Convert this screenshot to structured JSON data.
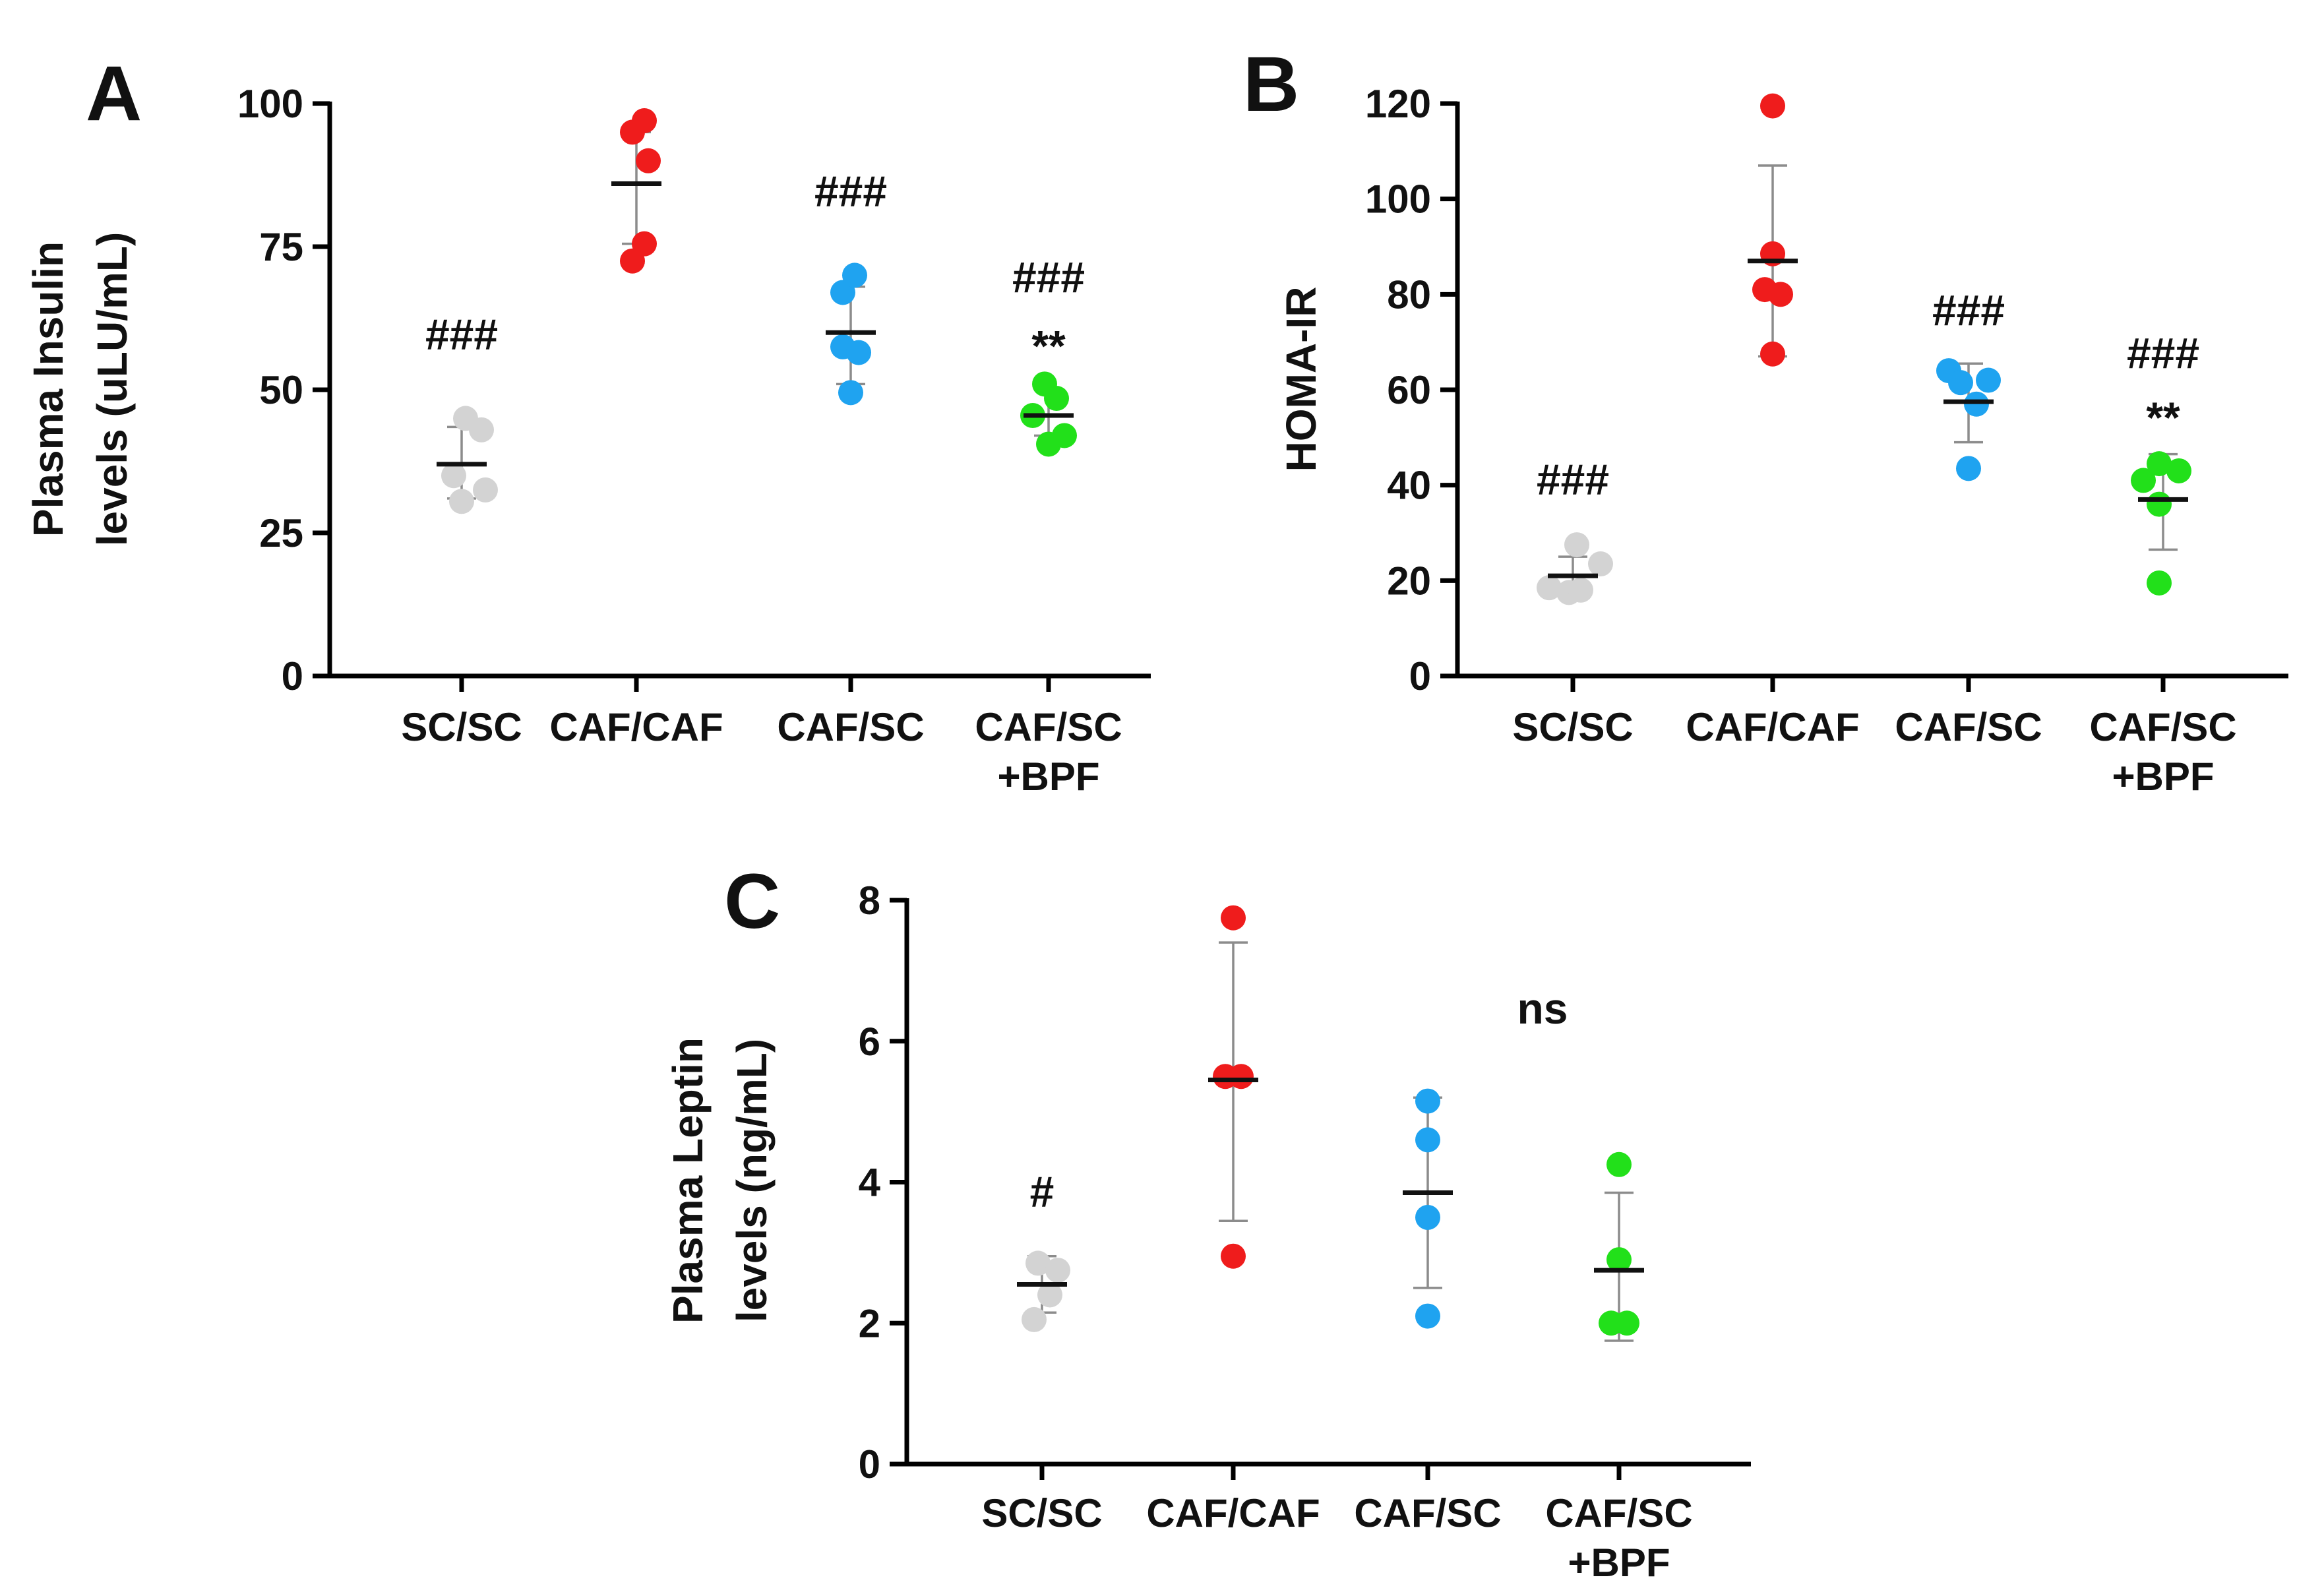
{
  "chart_data": [
    {
      "panel": "A",
      "type": "scatter",
      "ylabel_lines": [
        "Plasma Insulin",
        "levels (uLU/mL)"
      ],
      "ylim": [
        0,
        100
      ],
      "yticks": [
        0,
        25,
        50,
        75,
        100
      ],
      "categories": [
        [
          "SC/SC"
        ],
        [
          "CAF/CAF"
        ],
        [
          "CAF/SC"
        ],
        [
          "CAF/SC",
          "+BPF"
        ]
      ],
      "colors": [
        "#d3d3d3",
        "#ef1c1c",
        "#1fa3f0",
        "#22e01a"
      ],
      "series": [
        {
          "points": [
            [
              -0.1,
              35
            ],
            [
              0.05,
              45
            ],
            [
              0.25,
              43
            ],
            [
              0.0,
              30.5
            ],
            [
              0.3,
              32.5
            ]
          ],
          "mean": 37,
          "err": [
            31,
            43.5
          ]
        },
        {
          "points": [
            [
              -0.05,
              95
            ],
            [
              0.1,
              97
            ],
            [
              0.15,
              90
            ],
            [
              -0.05,
              72.5
            ],
            [
              0.1,
              75.5
            ]
          ],
          "mean": 86,
          "err": [
            75.5,
            95
          ]
        },
        {
          "points": [
            [
              -0.1,
              67
            ],
            [
              0.05,
              70
            ],
            [
              -0.1,
              57.5
            ],
            [
              0.1,
              56.5
            ],
            [
              0.0,
              49.5
            ]
          ],
          "mean": 60,
          "err": [
            51,
            68
          ]
        },
        {
          "points": [
            [
              -0.2,
              45.5
            ],
            [
              -0.05,
              51
            ],
            [
              0.1,
              48.5
            ],
            [
              0.0,
              40.5
            ],
            [
              0.2,
              42
            ]
          ],
          "mean": 45.5,
          "err": [
            42,
            50
          ]
        }
      ],
      "annotations": [
        {
          "cat": 0,
          "y": 57,
          "text": "###"
        },
        {
          "cat": 2,
          "y": 82,
          "text": "###"
        },
        {
          "cat": 3,
          "y": 67,
          "text": "###"
        },
        {
          "cat": 3,
          "y": 55,
          "text": "**"
        }
      ]
    },
    {
      "panel": "B",
      "type": "scatter",
      "ylabel_lines": [
        "HOMA-IR"
      ],
      "ylim": [
        0,
        120
      ],
      "yticks": [
        0,
        20,
        40,
        60,
        80,
        100,
        120
      ],
      "categories": [
        [
          "SC/SC"
        ],
        [
          "CAF/CAF"
        ],
        [
          "CAF/SC"
        ],
        [
          "CAF/SC",
          "+BPF"
        ]
      ],
      "colors": [
        "#d3d3d3",
        "#ef1c1c",
        "#1fa3f0",
        "#22e01a"
      ],
      "series": [
        {
          "points": [
            [
              -0.3,
              18.5
            ],
            [
              -0.05,
              17.5
            ],
            [
              0.05,
              27.5
            ],
            [
              0.1,
              18
            ],
            [
              0.35,
              23.5
            ]
          ],
          "mean": 21,
          "err": [
            17,
            25
          ]
        },
        {
          "points": [
            [
              0.0,
              119.5
            ],
            [
              0.0,
              88.5
            ],
            [
              -0.1,
              81
            ],
            [
              0.1,
              80
            ],
            [
              0.0,
              67.5
            ]
          ],
          "mean": 87,
          "err": [
            67,
            107
          ]
        },
        {
          "points": [
            [
              -0.25,
              64
            ],
            [
              -0.1,
              61.5
            ],
            [
              0.1,
              57
            ],
            [
              0.25,
              62
            ],
            [
              0.0,
              43.5
            ]
          ],
          "mean": 57.5,
          "err": [
            49,
            65.5
          ]
        },
        {
          "points": [
            [
              -0.25,
              41
            ],
            [
              -0.05,
              44.5
            ],
            [
              0.2,
              43
            ],
            [
              -0.05,
              36
            ],
            [
              -0.05,
              19.5
            ]
          ],
          "mean": 37,
          "err": [
            26.5,
            46.5
          ]
        }
      ],
      "annotations": [
        {
          "cat": 0,
          "y": 38,
          "text": "###"
        },
        {
          "cat": 2,
          "y": 73.5,
          "text": "###"
        },
        {
          "cat": 3,
          "y": 64.5,
          "text": "###"
        },
        {
          "cat": 3,
          "y": 51,
          "text": "**"
        }
      ]
    },
    {
      "panel": "C",
      "type": "scatter",
      "ylabel_lines": [
        "Plasma Leptin",
        "levels (ng/mL)"
      ],
      "ylim": [
        0,
        8
      ],
      "yticks": [
        0,
        2,
        4,
        6,
        8
      ],
      "categories": [
        [
          "SC/SC"
        ],
        [
          "CAF/CAF"
        ],
        [
          "CAF/SC"
        ],
        [
          "CAF/SC",
          "+BPF"
        ]
      ],
      "colors": [
        "#d3d3d3",
        "#ef1c1c",
        "#1fa3f0",
        "#22e01a"
      ],
      "series": [
        {
          "points": [
            [
              -0.05,
              2.85
            ],
            [
              0.2,
              2.75
            ],
            [
              0.1,
              2.4
            ],
            [
              -0.1,
              2.05
            ]
          ],
          "mean": 2.55,
          "err": [
            2.15,
            2.95
          ]
        },
        {
          "points": [
            [
              0.0,
              7.75
            ],
            [
              -0.1,
              5.5
            ],
            [
              0.1,
              5.5
            ],
            [
              0.0,
              2.95
            ]
          ],
          "mean": 5.45,
          "err": [
            3.45,
            7.4
          ]
        },
        {
          "points": [
            [
              0.0,
              5.15
            ],
            [
              0.0,
              4.6
            ],
            [
              0.0,
              3.5
            ],
            [
              0.0,
              2.1
            ]
          ],
          "mean": 3.85,
          "err": [
            2.5,
            5.2
          ]
        },
        {
          "points": [
            [
              0.0,
              4.25
            ],
            [
              0.0,
              2.9
            ],
            [
              -0.1,
              2.0
            ],
            [
              0.1,
              2.0
            ]
          ],
          "mean": 2.75,
          "err": [
            1.75,
            3.85
          ]
        }
      ],
      "annotations": [
        {
          "cat": 0,
          "y": 3.65,
          "text": "#"
        },
        {
          "cat": 2.6,
          "y": 6.25,
          "text": "ns"
        }
      ]
    }
  ]
}
